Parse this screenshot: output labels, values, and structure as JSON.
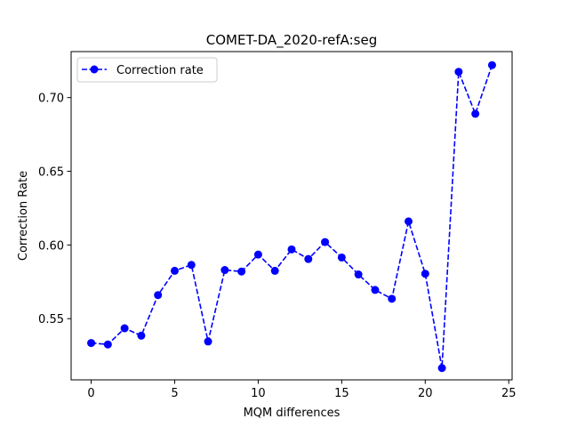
{
  "chart_data": {
    "type": "line",
    "title": "COMET-DA_2020-refA:seg",
    "xlabel": "MQM differences",
    "ylabel": "Correction Rate",
    "xlim": [
      -1.2,
      25.2
    ],
    "ylim": [
      0.5085,
      0.7312
    ],
    "xticks": [
      0,
      5,
      10,
      15,
      20,
      25
    ],
    "yticks": [
      0.55,
      0.6,
      0.65,
      0.7
    ],
    "ytick_labels": [
      "0.55",
      "0.60",
      "0.65",
      "0.70"
    ],
    "grid": false,
    "legend": "top-left",
    "series": [
      {
        "name": "Correction rate",
        "color": "#0000ff",
        "line_style": "dashed",
        "marker": "circle",
        "x": [
          0,
          1,
          2,
          3,
          4,
          5,
          6,
          7,
          8,
          9,
          10,
          11,
          12,
          13,
          14,
          15,
          16,
          17,
          18,
          19,
          20,
          21,
          22,
          23,
          24
        ],
        "y": [
          0.5335,
          0.5325,
          0.5435,
          0.5385,
          0.566,
          0.5825,
          0.5865,
          0.5345,
          0.583,
          0.582,
          0.5935,
          0.5825,
          0.597,
          0.5905,
          0.602,
          0.5915,
          0.58,
          0.5695,
          0.5635,
          0.616,
          0.5805,
          0.5165,
          0.7175,
          0.689,
          0.722
        ]
      }
    ]
  }
}
